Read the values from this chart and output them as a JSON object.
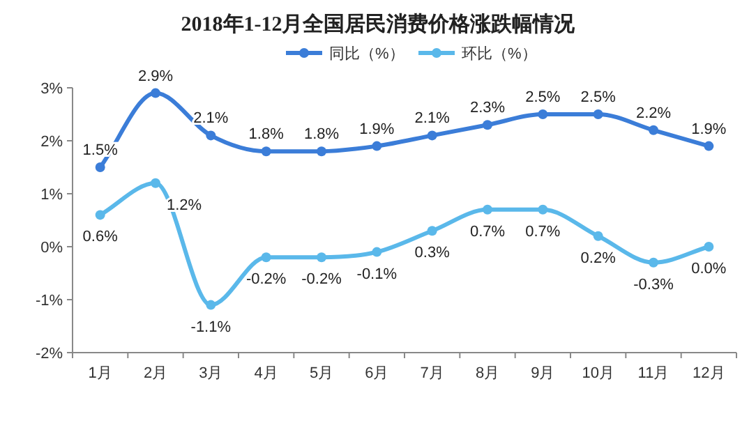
{
  "chart_data": {
    "type": "line",
    "title": "2018年1-12月全国居民消费价格涨跌幅情况",
    "categories": [
      "1月",
      "2月",
      "3月",
      "4月",
      "5月",
      "6月",
      "7月",
      "8月",
      "9月",
      "10月",
      "11月",
      "12月"
    ],
    "series": [
      {
        "name": "同比（%）",
        "color": "#3b7dd8",
        "values": [
          1.5,
          2.9,
          2.1,
          1.8,
          1.8,
          1.9,
          2.1,
          2.3,
          2.5,
          2.5,
          2.2,
          1.9
        ],
        "value_labels": [
          "1.5%",
          "2.9%",
          "2.1%",
          "1.8%",
          "1.8%",
          "1.9%",
          "2.1%",
          "2.3%",
          "2.5%",
          "2.5%",
          "2.2%",
          "1.9%"
        ]
      },
      {
        "name": "环比（%）",
        "color": "#5ab8ea",
        "values": [
          0.6,
          1.2,
          -1.1,
          -0.2,
          -0.2,
          -0.1,
          0.3,
          0.7,
          0.7,
          0.2,
          -0.3,
          0.0
        ],
        "value_labels": [
          "0.6%",
          "1.2%",
          "-1.1%",
          "-0.2%",
          "-0.2%",
          "-0.1%",
          "0.3%",
          "0.7%",
          "0.7%",
          "0.2%",
          "-0.3%",
          "0.0%"
        ]
      }
    ],
    "ylim": [
      -2,
      3
    ],
    "yticks": [
      {
        "value": -2,
        "label": "-2%"
      },
      {
        "value": -1,
        "label": "-1%"
      },
      {
        "value": 0,
        "label": "0%"
      },
      {
        "value": 1,
        "label": "1%"
      },
      {
        "value": 2,
        "label": "2%"
      },
      {
        "value": 3,
        "label": "3%"
      }
    ],
    "grid": false,
    "legend": "top",
    "marker": "circle",
    "line_style": "solid"
  }
}
